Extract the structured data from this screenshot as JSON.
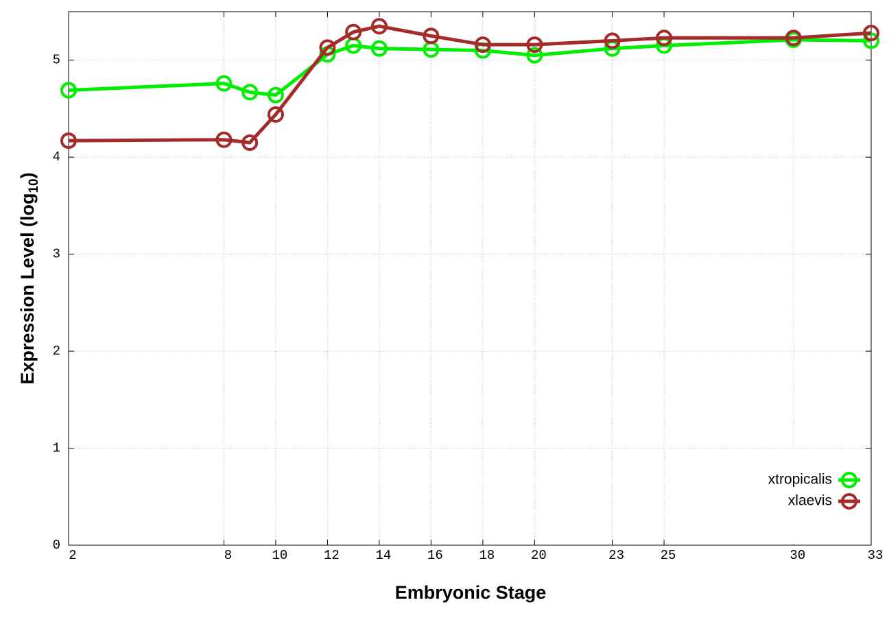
{
  "chart_data": {
    "type": "line",
    "x_label": "Embryonic Stage",
    "y_label": [
      "Expression Level (log",
      "10",
      ")"
    ],
    "x": [
      2,
      8,
      9,
      10,
      12,
      13,
      14,
      16,
      18,
      20,
      23,
      25,
      30,
      33
    ],
    "series": [
      {
        "name": "xtropicalis",
        "color": "#00ee00",
        "values": [
          4.69,
          4.76,
          4.67,
          4.64,
          5.06,
          5.15,
          5.12,
          5.11,
          5.1,
          5.05,
          5.12,
          5.15,
          5.21,
          5.2
        ]
      },
      {
        "name": "xlaevis",
        "color": "#a52a2a",
        "values": [
          4.17,
          4.18,
          4.15,
          4.44,
          5.13,
          5.29,
          5.35,
          5.25,
          5.16,
          5.16,
          5.2,
          5.23,
          5.23,
          5.28
        ]
      }
    ],
    "xlim": [
      2,
      33
    ],
    "xticks": [
      2,
      8,
      10,
      12,
      14,
      16,
      18,
      20,
      23,
      25,
      30,
      33
    ],
    "ylim": [
      0,
      5.5
    ],
    "yticks": [
      0,
      1,
      2,
      3,
      4,
      5
    ],
    "grid": true,
    "legend": "lower right"
  }
}
